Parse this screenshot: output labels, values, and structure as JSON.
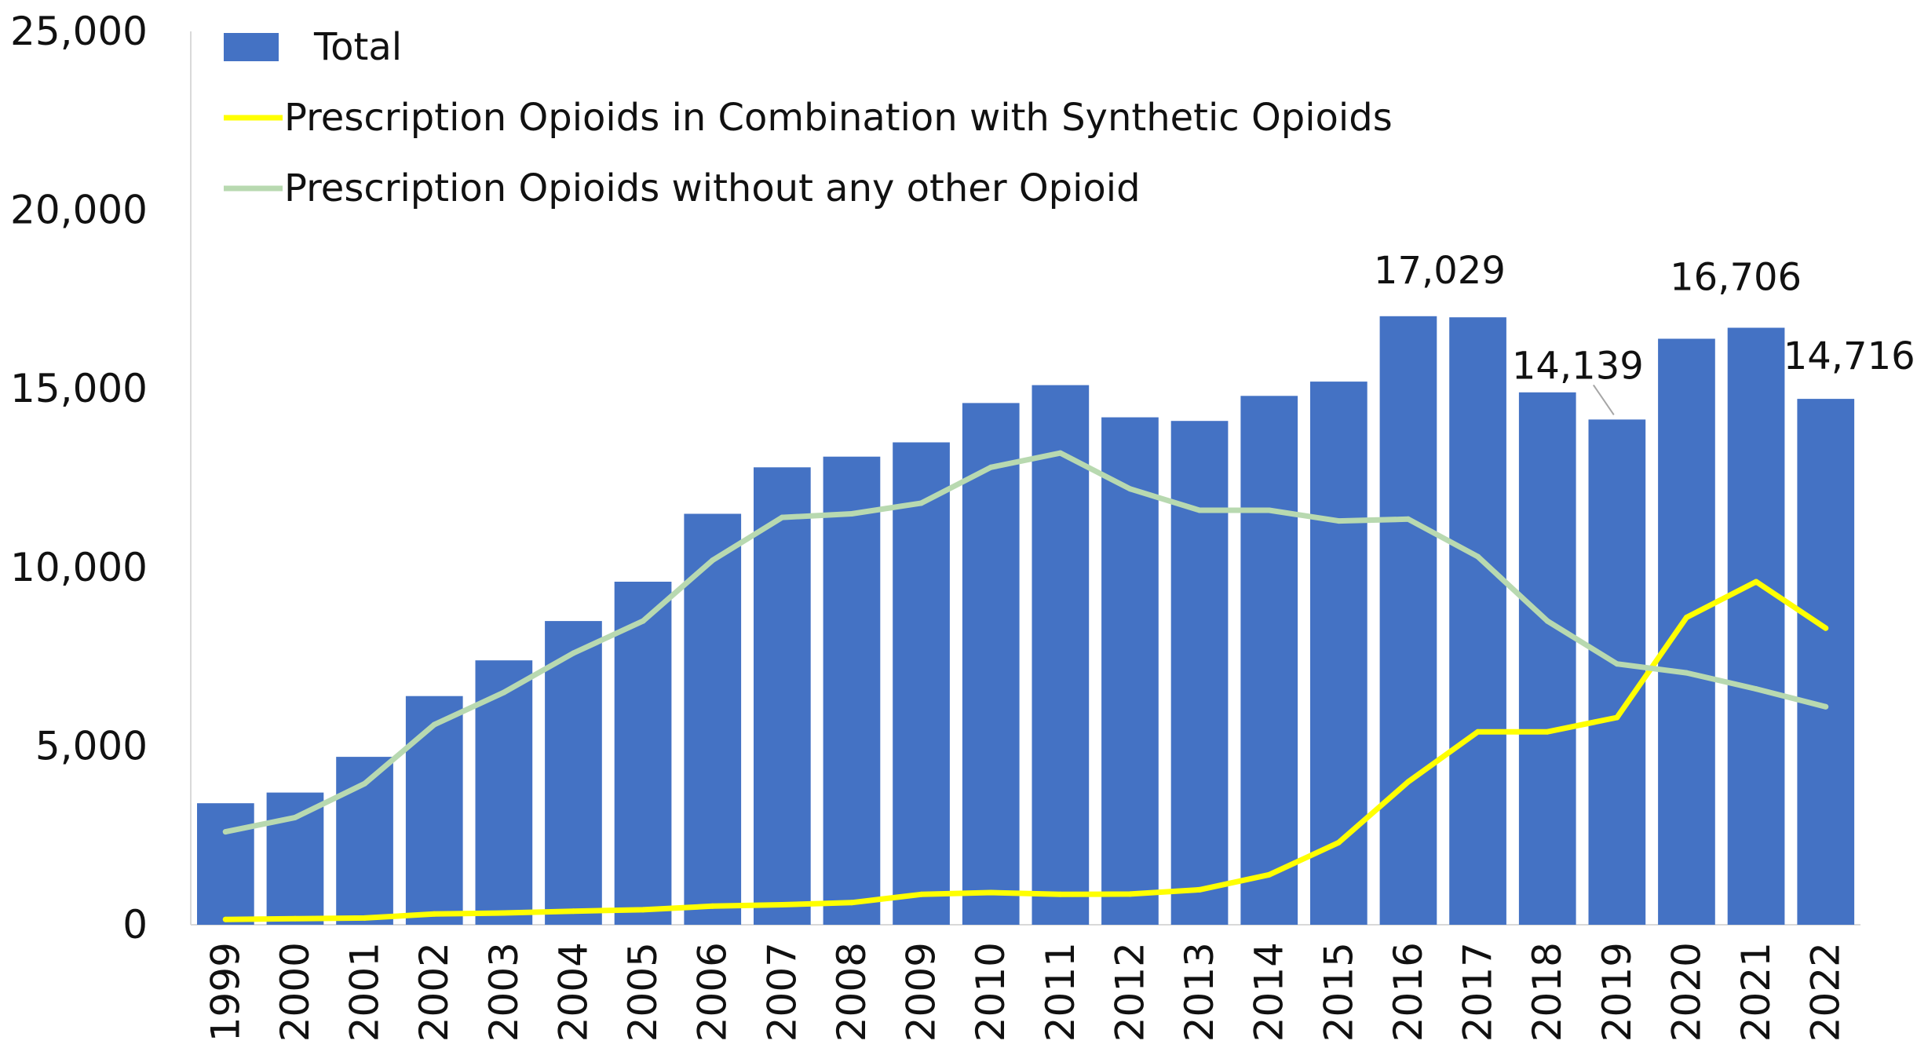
{
  "chart_data": {
    "type": "bar",
    "categories": [
      "1999",
      "2000",
      "2001",
      "2002",
      "2003",
      "2004",
      "2005",
      "2006",
      "2007",
      "2008",
      "2009",
      "2010",
      "2011",
      "2012",
      "2013",
      "2014",
      "2015",
      "2016",
      "2017",
      "2018",
      "2019",
      "2020",
      "2021",
      "2022"
    ],
    "ylim": [
      0,
      25000
    ],
    "yticks": [
      "0",
      "5,000",
      "10,000",
      "15,000",
      "20,000",
      "25,000"
    ],
    "ytick_values": [
      0,
      5000,
      10000,
      15000,
      20000,
      25000
    ],
    "grid": false,
    "legend_position": "top-left",
    "series": [
      {
        "name": "Total",
        "kind": "bar",
        "color": "#4472c4",
        "values": [
          3400,
          3700,
          4700,
          6400,
          7400,
          8500,
          9600,
          11500,
          12800,
          13100,
          13500,
          14600,
          15100,
          14200,
          14100,
          14800,
          15200,
          17029,
          17000,
          14900,
          14139,
          16400,
          16706,
          14716
        ]
      },
      {
        "name": "Prescription Opioids in Combination with Synthetic Opioids",
        "kind": "line",
        "color": "#ffff00",
        "values": [
          150,
          170,
          190,
          300,
          330,
          380,
          420,
          520,
          560,
          620,
          850,
          900,
          850,
          860,
          980,
          1400,
          2300,
          4000,
          5400,
          5400,
          5800,
          8600,
          9600,
          8300
        ]
      },
      {
        "name": "Prescription Opioids without any other Opioid",
        "kind": "line",
        "color": "#b8d9b0",
        "values": [
          2600,
          3000,
          3950,
          5600,
          6500,
          7600,
          8500,
          10200,
          11400,
          11500,
          11800,
          12800,
          13200,
          12200,
          11600,
          11600,
          11300,
          11350,
          10300,
          8500,
          7300,
          7050,
          6600,
          6100
        ]
      }
    ],
    "annotations": [
      {
        "category": "2016",
        "text": "17,029"
      },
      {
        "category": "2019",
        "text": "14,139"
      },
      {
        "category": "2021",
        "text": "16,706"
      },
      {
        "category": "2022",
        "text": "14,716"
      }
    ]
  }
}
